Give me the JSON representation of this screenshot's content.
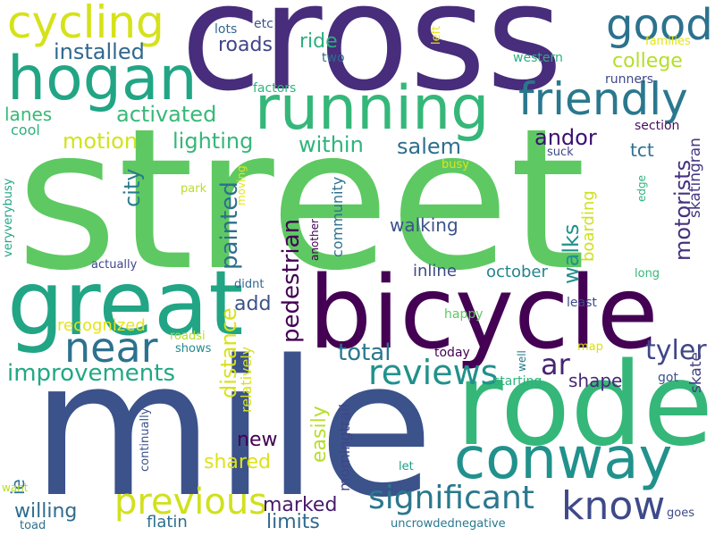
{
  "words": [
    {
      "text": "street",
      "color": "#5ec962"
    },
    {
      "text": "cross",
      "color": "#472d7b"
    },
    {
      "text": "mile",
      "color": "#3b528b"
    },
    {
      "text": "bicycle",
      "color": "#440154"
    },
    {
      "text": "rode",
      "color": "#35b779"
    },
    {
      "text": "great",
      "color": "#21a585"
    },
    {
      "text": "running",
      "color": "#35b779"
    },
    {
      "text": "hogan",
      "color": "#21a585"
    },
    {
      "text": "conway",
      "color": "#21918c"
    },
    {
      "text": "friendly",
      "color": "#2a788e"
    },
    {
      "text": "cycling",
      "color": "#d5e21a"
    },
    {
      "text": "good",
      "color": "#2c728e"
    },
    {
      "text": "near",
      "color": "#2c728e"
    },
    {
      "text": "know",
      "color": "#3e4a89"
    },
    {
      "text": "reviews",
      "color": "#21918c"
    },
    {
      "text": "previous",
      "color": "#d0e11c"
    },
    {
      "text": "significant",
      "color": "#2a788e"
    },
    {
      "text": "tyler",
      "color": "#404688"
    },
    {
      "text": "ar",
      "color": "#482475"
    },
    {
      "text": "improvements",
      "color": "#22a884"
    },
    {
      "text": "installed",
      "color": "#31688e"
    },
    {
      "text": "activated",
      "color": "#38b977"
    },
    {
      "text": "motion",
      "color": "#d2e21b"
    },
    {
      "text": "lighting",
      "color": "#35b779"
    },
    {
      "text": "within",
      "color": "#2fb47c"
    },
    {
      "text": "salem",
      "color": "#2e6e8e"
    },
    {
      "text": "andor",
      "color": "#3b0f70"
    },
    {
      "text": "college",
      "color": "#b5de2b"
    },
    {
      "text": "roads",
      "color": "#414487"
    },
    {
      "text": "ride",
      "color": "#2ab07f"
    },
    {
      "text": "lanes",
      "color": "#38b977"
    },
    {
      "text": "cool",
      "color": "#2db27d"
    },
    {
      "text": "city",
      "color": "#287c8e"
    },
    {
      "text": "painted",
      "color": "#2d708e"
    },
    {
      "text": "pedestrian",
      "color": "#440154"
    },
    {
      "text": "distance",
      "color": "#d8e219"
    },
    {
      "text": "total",
      "color": "#2a788e"
    },
    {
      "text": "walking",
      "color": "#3b528b"
    },
    {
      "text": "walks",
      "color": "#21918c"
    },
    {
      "text": "motorists",
      "color": "#46327e"
    },
    {
      "text": "willing",
      "color": "#2f6c8e"
    },
    {
      "text": "shared",
      "color": "#dde318"
    },
    {
      "text": "marked",
      "color": "#481b6d"
    },
    {
      "text": "limits",
      "color": "#31688e"
    },
    {
      "text": "new",
      "color": "#440154"
    },
    {
      "text": "add",
      "color": "#3b528b"
    },
    {
      "text": "easily",
      "color": "#b5de2b"
    },
    {
      "text": "shape",
      "color": "#482878"
    },
    {
      "text": "october",
      "color": "#25848e"
    },
    {
      "text": "inline",
      "color": "#3e4989"
    },
    {
      "text": "recognized",
      "color": "#e5e419"
    },
    {
      "text": "flatin",
      "color": "#2e6f8e"
    },
    {
      "text": "skatingran",
      "color": "#443983"
    },
    {
      "text": "tct",
      "color": "#2d708e"
    },
    {
      "text": "boarding",
      "color": "#cde11d"
    },
    {
      "text": "skate",
      "color": "#423f85"
    },
    {
      "text": "ie",
      "color": "#2d708e"
    },
    {
      "text": "morningtrail",
      "color": "#404588"
    },
    {
      "text": "community",
      "color": "#2c728e"
    },
    {
      "text": "relatively",
      "color": "#d8e219"
    },
    {
      "text": "section",
      "color": "#470e61"
    },
    {
      "text": "factors",
      "color": "#2fb47c"
    },
    {
      "text": "runners",
      "color": "#3e4989"
    },
    {
      "text": "western",
      "color": "#2ab07f"
    },
    {
      "text": "two",
      "color": "#31688e"
    },
    {
      "text": "lots",
      "color": "#31688e"
    },
    {
      "text": "etc",
      "color": "#3a538b"
    },
    {
      "text": "left",
      "color": "#eee51c"
    },
    {
      "text": "families",
      "color": "#e2e418"
    },
    {
      "text": "veryverybusy",
      "color": "#21a685"
    },
    {
      "text": "actually",
      "color": "#404688"
    },
    {
      "text": "park",
      "color": "#b8de29"
    },
    {
      "text": "moving",
      "color": "#e5e419"
    },
    {
      "text": "another",
      "color": "#440154"
    },
    {
      "text": "busy",
      "color": "#dde318"
    },
    {
      "text": "suck",
      "color": "#3e4989"
    },
    {
      "text": "edge",
      "color": "#2db27d"
    },
    {
      "text": "long",
      "color": "#35b779"
    },
    {
      "text": "least",
      "color": "#3e4989"
    },
    {
      "text": "happy",
      "color": "#5ec962"
    },
    {
      "text": "didnt",
      "color": "#31688e"
    },
    {
      "text": "roadsi",
      "color": "#b5de2b"
    },
    {
      "text": "shows",
      "color": "#23898e"
    },
    {
      "text": "continually",
      "color": "#3b528b"
    },
    {
      "text": "today",
      "color": "#440154"
    },
    {
      "text": "well",
      "color": "#2a788e"
    },
    {
      "text": "starting",
      "color": "#2db27d"
    },
    {
      "text": "map",
      "color": "#d8e219"
    },
    {
      "text": "got",
      "color": "#3b528b"
    },
    {
      "text": "let",
      "color": "#1fa088"
    },
    {
      "text": "uncrowdednegative",
      "color": "#2a788e"
    },
    {
      "text": "goes",
      "color": "#3e4989"
    },
    {
      "text": "want",
      "color": "#b5de2b"
    },
    {
      "text": "toad",
      "color": "#2c728e"
    }
  ]
}
